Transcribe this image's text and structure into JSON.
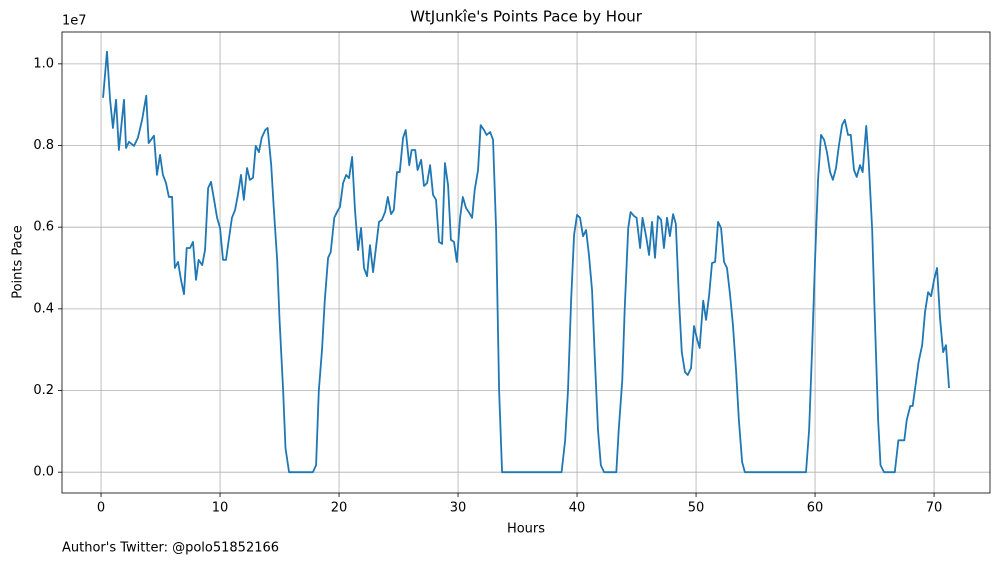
{
  "chart_data": {
    "type": "line",
    "title": "WtJunkîe's Points Pace by Hour",
    "x_label": "Hours",
    "y_label": "Points Pace",
    "y_offset_label": "1e7",
    "footnote": "Author's Twitter: @polo51852166",
    "color": "#1f77b4",
    "grid": true,
    "xlim": [
      -3.28,
      74.7
    ],
    "ylim": [
      -0.051,
      1.078
    ],
    "xticks": [
      0,
      10,
      20,
      30,
      40,
      50,
      60,
      70
    ],
    "yticks": [
      {
        "value": 0,
        "label": "0.0"
      },
      0.2,
      0.4,
      0.6,
      0.8,
      {
        "value": 1,
        "label": "1.0"
      }
    ],
    "x": [
      0.17,
      0.5,
      0.76,
      1.0,
      1.26,
      1.5,
      1.93,
      2.1,
      2.35,
      2.77,
      3.1,
      3.45,
      3.8,
      4.0,
      4.45,
      4.7,
      4.96,
      5.2,
      5.46,
      5.7,
      5.97,
      6.2,
      6.47,
      6.72,
      6.97,
      7.2,
      7.48,
      7.73,
      7.98,
      8.2,
      8.5,
      8.74,
      9.0,
      9.24,
      9.5,
      9.75,
      10.0,
      10.25,
      10.5,
      10.76,
      11.0,
      11.26,
      11.5,
      11.76,
      12.0,
      12.27,
      12.5,
      12.77,
      13.0,
      13.27,
      13.5,
      13.8,
      14.0,
      14.3,
      14.5,
      14.8,
      15.0,
      15.3,
      15.5,
      15.8,
      17.8,
      18.07,
      18.3,
      18.57,
      18.8,
      19.08,
      19.3,
      19.6,
      19.83,
      20.08,
      20.34,
      20.6,
      20.84,
      21.1,
      21.34,
      21.6,
      21.85,
      22.1,
      22.35,
      22.6,
      22.86,
      23.1,
      23.36,
      23.6,
      23.87,
      24.1,
      24.37,
      24.6,
      24.87,
      25.1,
      25.38,
      25.6,
      25.9,
      26.1,
      26.4,
      26.6,
      26.9,
      27.14,
      27.4,
      27.65,
      27.9,
      28.15,
      28.4,
      28.66,
      28.9,
      29.16,
      29.4,
      29.66,
      29.9,
      30.17,
      30.4,
      30.67,
      30.9,
      31.18,
      31.4,
      31.68,
      31.9,
      32.18,
      32.4,
      32.7,
      32.94,
      33.2,
      33.45,
      33.7,
      38.7,
      39.0,
      39.24,
      39.5,
      39.75,
      40.0,
      40.25,
      40.5,
      40.76,
      41.0,
      41.26,
      41.5,
      41.76,
      42.0,
      42.27,
      43.3,
      43.5,
      43.8,
      44.0,
      44.3,
      44.5,
      44.8,
      45.0,
      45.3,
      45.5,
      45.8,
      46.05,
      46.3,
      46.55,
      46.8,
      47.06,
      47.3,
      47.56,
      47.8,
      48.07,
      48.3,
      48.57,
      48.8,
      49.07,
      49.3,
      49.58,
      49.83,
      50.1,
      50.3,
      50.6,
      50.84,
      51.1,
      51.34,
      51.6,
      51.85,
      52.1,
      52.35,
      52.6,
      52.86,
      53.1,
      53.36,
      53.6,
      53.87,
      54.1,
      59.24,
      59.5,
      59.75,
      60.0,
      60.25,
      60.5,
      60.76,
      61.0,
      61.26,
      61.5,
      61.76,
      62.0,
      62.27,
      62.5,
      62.77,
      63.0,
      63.27,
      63.5,
      63.78,
      64.0,
      64.3,
      64.5,
      64.8,
      65.0,
      65.3,
      65.5,
      65.8,
      66.7,
      67.0,
      67.5,
      67.7,
      68.0,
      68.2,
      68.5,
      68.7,
      69.0,
      69.24,
      69.5,
      69.75,
      70.0,
      70.25,
      70.5,
      70.76,
      71.0,
      71.26
    ],
    "values": [
      0.917,
      1.03,
      0.912,
      0.843,
      0.912,
      0.789,
      0.912,
      0.794,
      0.809,
      0.799,
      0.819,
      0.863,
      0.922,
      0.806,
      0.824,
      0.728,
      0.777,
      0.728,
      0.708,
      0.674,
      0.674,
      0.5,
      0.515,
      0.471,
      0.436,
      0.549,
      0.549,
      0.564,
      0.471,
      0.52,
      0.507,
      0.544,
      0.696,
      0.711,
      0.667,
      0.623,
      0.598,
      0.52,
      0.52,
      0.574,
      0.623,
      0.642,
      0.679,
      0.728,
      0.667,
      0.745,
      0.716,
      0.721,
      0.799,
      0.784,
      0.819,
      0.838,
      0.843,
      0.752,
      0.654,
      0.52,
      0.373,
      0.201,
      0.059,
      0,
      0,
      0.017,
      0.2,
      0.3,
      0.42,
      0.525,
      0.539,
      0.623,
      0.637,
      0.65,
      0.708,
      0.728,
      0.72,
      0.772,
      0.642,
      0.544,
      0.598,
      0.5,
      0.48,
      0.556,
      0.49,
      0.549,
      0.613,
      0.618,
      0.637,
      0.674,
      0.632,
      0.642,
      0.735,
      0.735,
      0.819,
      0.838,
      0.752,
      0.789,
      0.789,
      0.74,
      0.765,
      0.701,
      0.708,
      0.752,
      0.679,
      0.667,
      0.564,
      0.559,
      0.757,
      0.703,
      0.569,
      0.564,
      0.515,
      0.623,
      0.674,
      0.647,
      0.637,
      0.623,
      0.691,
      0.74,
      0.85,
      0.838,
      0.826,
      0.833,
      0.814,
      0.593,
      0.201,
      0,
      0,
      0.078,
      0.201,
      0.42,
      0.581,
      0.63,
      0.623,
      0.578,
      0.593,
      0.532,
      0.446,
      0.275,
      0.103,
      0.017,
      0,
      0,
      0.103,
      0.225,
      0.397,
      0.598,
      0.637,
      0.627,
      0.623,
      0.549,
      0.623,
      0.578,
      0.532,
      0.613,
      0.525,
      0.627,
      0.618,
      0.549,
      0.623,
      0.578,
      0.632,
      0.608,
      0.42,
      0.294,
      0.245,
      0.238,
      0.255,
      0.358,
      0.324,
      0.304,
      0.42,
      0.373,
      0.434,
      0.512,
      0.515,
      0.613,
      0.598,
      0.515,
      0.5,
      0.434,
      0.36,
      0.25,
      0.127,
      0.025,
      0,
      0,
      0.103,
      0.3,
      0.52,
      0.716,
      0.826,
      0.814,
      0.784,
      0.735,
      0.716,
      0.745,
      0.799,
      0.85,
      0.863,
      0.826,
      0.826,
      0.74,
      0.723,
      0.752,
      0.735,
      0.848,
      0.765,
      0.593,
      0.397,
      0.127,
      0.017,
      0,
      0,
      0.078,
      0.078,
      0.127,
      0.162,
      0.162,
      0.225,
      0.27,
      0.311,
      0.392,
      0.441,
      0.431,
      0.471,
      0.5,
      0.377,
      0.294,
      0.311,
      0.206
    ]
  }
}
